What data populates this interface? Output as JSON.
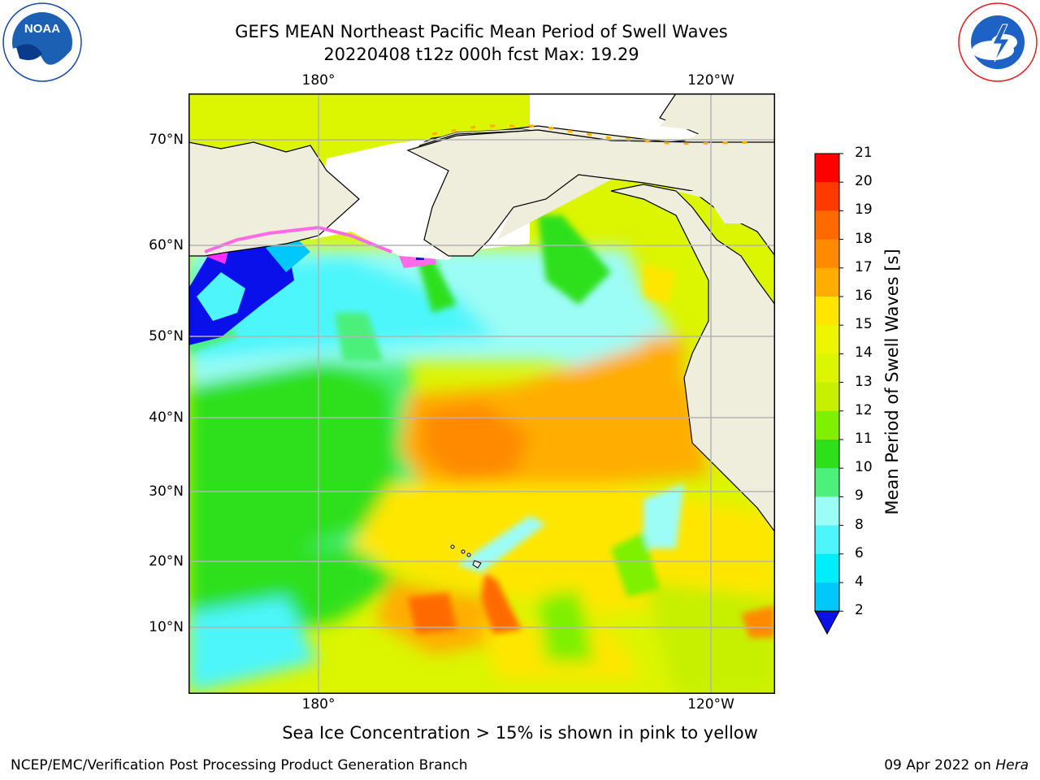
{
  "title": {
    "line1": "GEFS MEAN Northeast Pacific Mean Period of Swell Waves",
    "line2": "20220408 t12z 000h fcst   Max: 19.29"
  },
  "map": {
    "lon_ticks": [
      "180°",
      "120°W"
    ],
    "lat_ticks": [
      "70°N",
      "60°N",
      "50°N",
      "40°N",
      "30°N",
      "20°N",
      "10°N"
    ],
    "colors": {
      "land": "#efeddc",
      "ice_free_white": "#ffffff",
      "grid": "#b4b4b4"
    }
  },
  "colorbar": {
    "label": "Mean Period of Swell Waves [s]",
    "ticks": [
      "21",
      "20",
      "19",
      "18",
      "17",
      "16",
      "15",
      "14",
      "13",
      "12",
      "11",
      "10",
      "9",
      "8",
      "6",
      "4",
      "2"
    ],
    "colors": [
      "#ff0000",
      "#ff3a00",
      "#ff6a00",
      "#ff8a00",
      "#ffad00",
      "#ffe600",
      "#eef500",
      "#dcf500",
      "#c6f000",
      "#7ef000",
      "#2ee01a",
      "#4cf07a",
      "#9cfcf6",
      "#4ef6fb",
      "#00eefc",
      "#00c8fa",
      "#0078f2",
      "#0a10ea"
    ]
  },
  "footnote": "Sea Ice Concentration > 15% is shown in pink to yellow",
  "credit_left": "NCEP/EMC/Verification Post Processing Product Generation Branch",
  "credit_right_date": "09 Apr 2022 on ",
  "credit_right_host": "Hera",
  "logos": {
    "noaa": "NOAA",
    "noaa_ring": "NATIONAL OCEANIC AND ATMOSPHERIC ADMINISTRATION · U.S. DEPARTMENT OF COMMERCE",
    "nws_ring": "NATIONAL WEATHER SERVICE"
  }
}
